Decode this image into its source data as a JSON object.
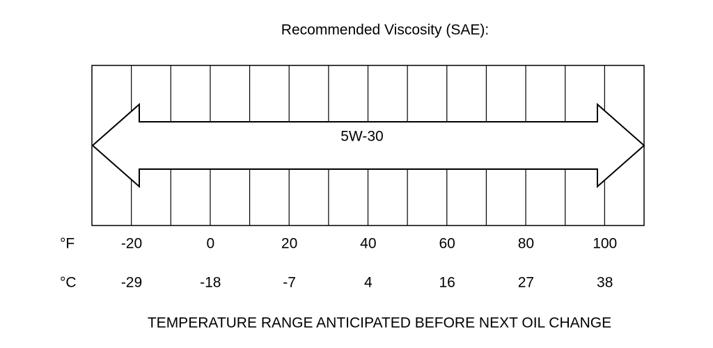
{
  "title": "Recommended Viscosity (SAE):",
  "oil_grade": "5W-30",
  "scales": [
    {
      "unit": "°F",
      "labels": [
        "-20",
        "0",
        "20",
        "40",
        "60",
        "80",
        "100"
      ]
    },
    {
      "unit": "°C",
      "labels": [
        "-29",
        "-18",
        "-7",
        "4",
        "16",
        "27",
        "38"
      ]
    }
  ],
  "footer": "TEMPERATURE RANGE ANTICIPATED BEFORE NEXT OIL CHANGE"
}
